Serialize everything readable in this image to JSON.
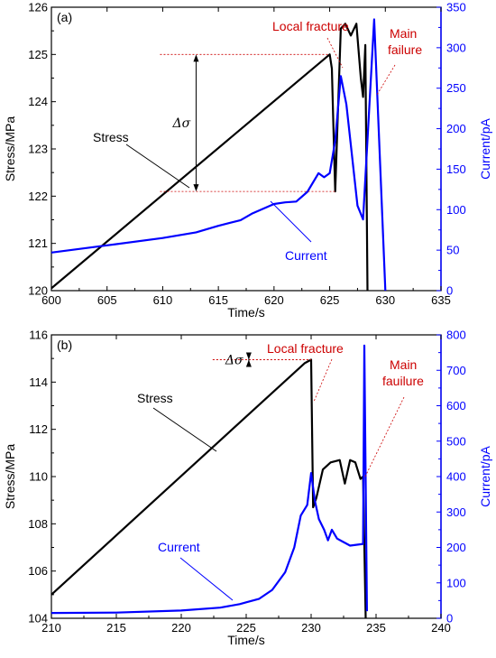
{
  "colors": {
    "stress": "#000000",
    "current": "#0000ff",
    "annotation": "#cc0000",
    "right_axis": "#0000ff"
  },
  "chart_data": [
    {
      "type": "line",
      "panel_label": "(a)",
      "xlabel": "Time/s",
      "ylabel": "Stress/MPa",
      "ylabel_right": "Current/pA",
      "xlim": [
        600,
        635
      ],
      "ylim": [
        120,
        126
      ],
      "ylim_right": [
        0,
        350
      ],
      "xticks": [
        600,
        605,
        610,
        615,
        620,
        625,
        630,
        635
      ],
      "yticks": [
        120,
        121,
        122,
        123,
        124,
        125,
        126
      ],
      "yticks_right": [
        0,
        50,
        100,
        150,
        200,
        250,
        300,
        350
      ],
      "series": [
        {
          "name": "Stress",
          "axis": "left",
          "points": [
            [
              600,
              120.05
            ],
            [
              625,
              125.0
            ],
            [
              625.2,
              124.7
            ],
            [
              625.4,
              122.9
            ],
            [
              625.5,
              122.1
            ],
            [
              625.7,
              123.5
            ],
            [
              626.0,
              125.55
            ],
            [
              626.4,
              125.65
            ],
            [
              626.9,
              125.4
            ],
            [
              627.4,
              125.65
            ],
            [
              627.8,
              124.5
            ],
            [
              628.0,
              124.1
            ],
            [
              628.2,
              125.2
            ],
            [
              628.4,
              120.0
            ]
          ]
        },
        {
          "name": "Current",
          "axis": "right",
          "points": [
            [
              600,
              47
            ],
            [
              605,
              56
            ],
            [
              610,
              65
            ],
            [
              613,
              72
            ],
            [
              615,
              80
            ],
            [
              617,
              87
            ],
            [
              618,
              95
            ],
            [
              620,
              107
            ],
            [
              621,
              109
            ],
            [
              622,
              110
            ],
            [
              623,
              122
            ],
            [
              624,
              145
            ],
            [
              624.5,
              140
            ],
            [
              625,
              145
            ],
            [
              625.5,
              185
            ],
            [
              626,
              265
            ],
            [
              626.5,
              230
            ],
            [
              627.5,
              105
            ],
            [
              628,
              88
            ],
            [
              629,
              335
            ],
            [
              630,
              0
            ]
          ]
        }
      ],
      "annotations": {
        "local": "Local fracture",
        "main": [
          "Main",
          "failure"
        ],
        "delta": "Δσ",
        "stress": "Stress",
        "current": "Current"
      }
    },
    {
      "type": "line",
      "panel_label": "(b)",
      "xlabel": "Time/s",
      "ylabel": "Stress/MPa",
      "ylabel_right": "Current/pA",
      "xlim": [
        210,
        240
      ],
      "ylim": [
        104,
        116
      ],
      "ylim_right": [
        0,
        800
      ],
      "xticks": [
        210,
        215,
        220,
        225,
        230,
        235,
        240
      ],
      "yticks": [
        104,
        106,
        108,
        110,
        112,
        114,
        116
      ],
      "yticks_right": [
        0,
        100,
        200,
        300,
        400,
        500,
        600,
        700,
        800
      ],
      "series": [
        {
          "name": "Stress",
          "axis": "left",
          "points": [
            [
              210,
              105.0
            ],
            [
              229.5,
              114.8
            ],
            [
              230,
              114.95
            ],
            [
              230.15,
              108.7
            ],
            [
              230.4,
              109.1
            ],
            [
              230.9,
              110.3
            ],
            [
              231.5,
              110.6
            ],
            [
              232.2,
              110.7
            ],
            [
              232.6,
              109.7
            ],
            [
              233.0,
              110.7
            ],
            [
              233.4,
              110.6
            ],
            [
              233.8,
              109.9
            ],
            [
              234.0,
              110.0
            ],
            [
              234.2,
              104.0
            ]
          ]
        },
        {
          "name": "Current",
          "axis": "right",
          "points": [
            [
              210,
              15
            ],
            [
              215,
              16
            ],
            [
              220,
              22
            ],
            [
              223,
              30
            ],
            [
              224.5,
              40
            ],
            [
              225,
              45
            ],
            [
              226,
              55
            ],
            [
              227,
              80
            ],
            [
              228,
              130
            ],
            [
              228.7,
              200
            ],
            [
              229.2,
              290
            ],
            [
              229.7,
              320
            ],
            [
              230,
              410
            ],
            [
              230.3,
              330
            ],
            [
              230.6,
              280
            ],
            [
              231,
              250
            ],
            [
              231.3,
              220
            ],
            [
              231.6,
              250
            ],
            [
              232,
              225
            ],
            [
              232.5,
              215
            ],
            [
              233,
              205
            ],
            [
              234,
              210
            ],
            [
              234.1,
              770
            ],
            [
              234.3,
              20
            ]
          ]
        }
      ],
      "annotations": {
        "local": "Local fracture",
        "main": [
          "Main",
          "fauilure"
        ],
        "delta": "Δσ",
        "stress": "Stress",
        "current": "Current"
      }
    }
  ]
}
